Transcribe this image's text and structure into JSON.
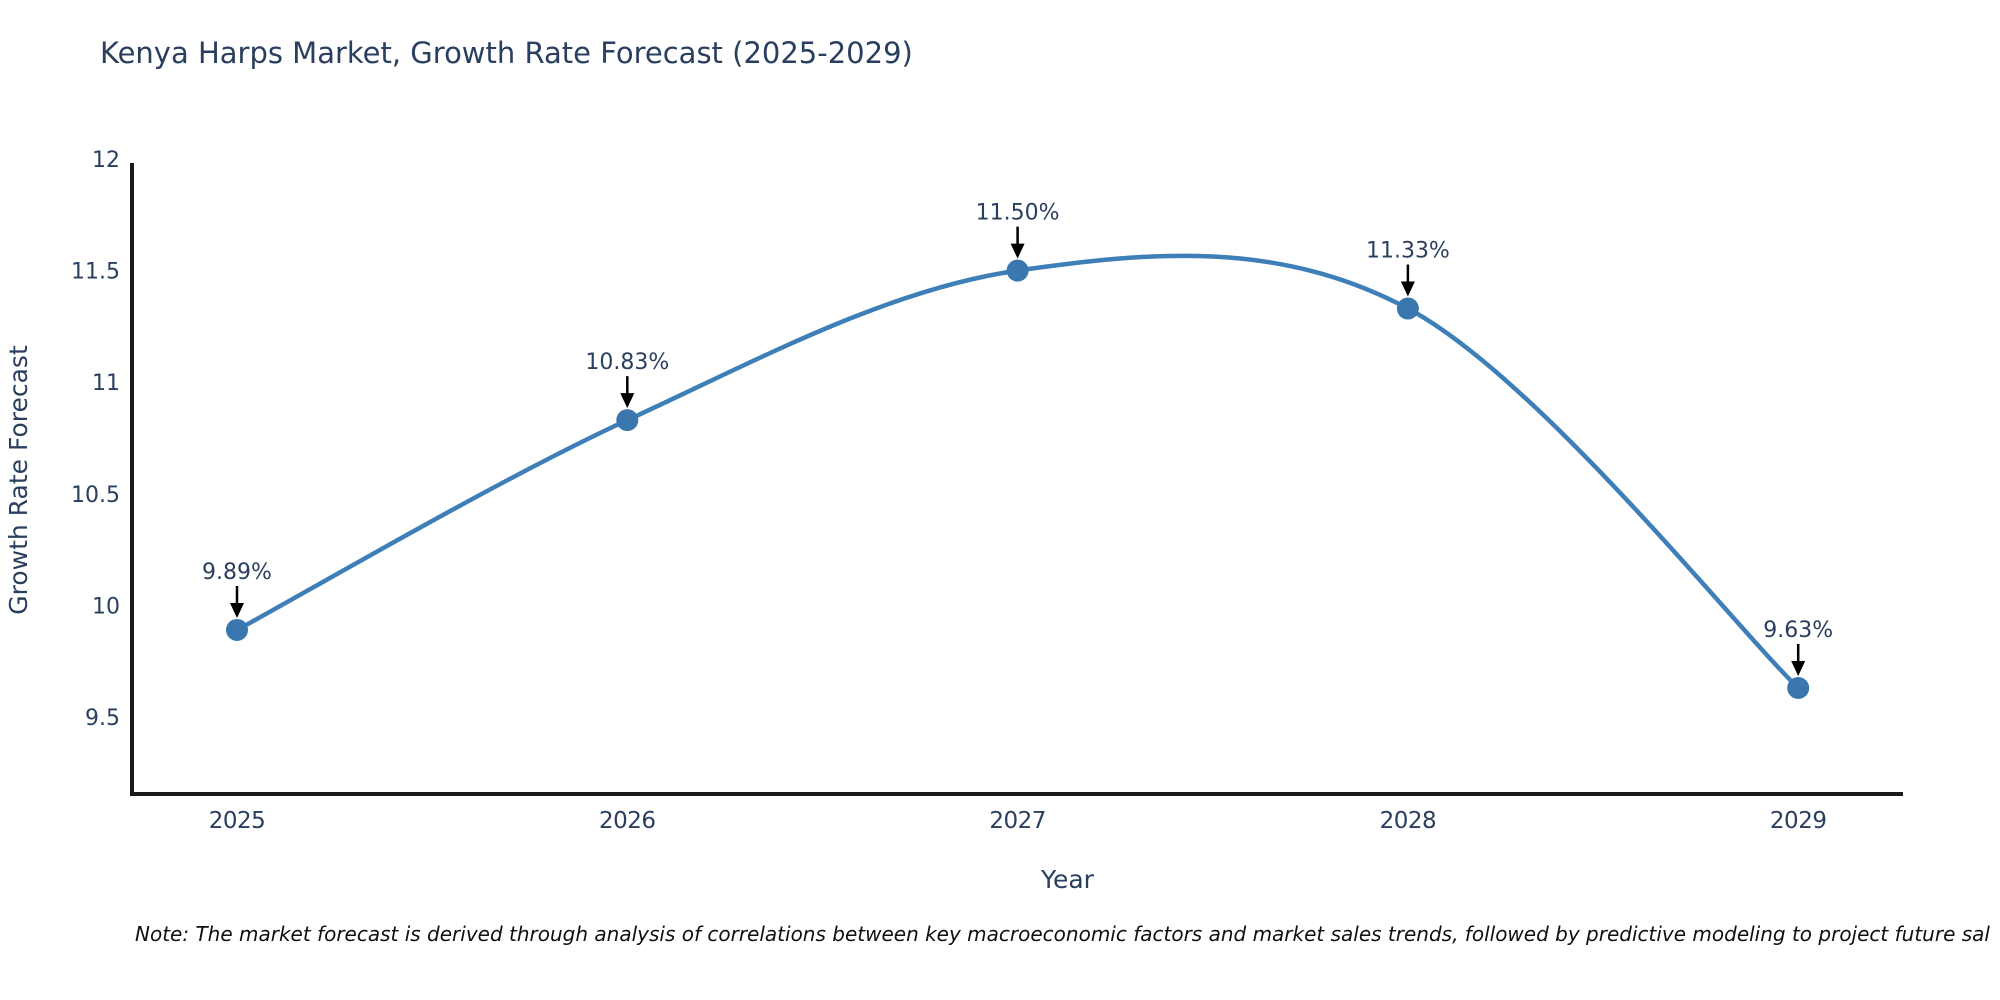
{
  "page": {
    "background": "#ffffff"
  },
  "header": {
    "title": "Kenya Harps Market, Growth Rate Forecast (2025-2029)"
  },
  "footer": {
    "note": "Note: The market forecast is derived through analysis of correlations between key macroeconomic factors and market sales trends, followed by predictive modeling to project future sal"
  },
  "chart_data": {
    "type": "line",
    "title": "Kenya Harps Market, Growth Rate Forecast (2025-2029)",
    "xlabel": "Year",
    "ylabel": "Growth Rate Forecast",
    "line_shape": "spline",
    "grid": false,
    "legend": "none",
    "x": [
      2025,
      2026,
      2027,
      2028,
      2029
    ],
    "xtick_labels": [
      "2025",
      "2026",
      "2027",
      "2028",
      "2029"
    ],
    "series": [
      {
        "name": "Growth Rate Forecast",
        "values": [
          9.89,
          10.83,
          11.5,
          11.33,
          9.63
        ],
        "point_labels": [
          "9.89%",
          "10.83%",
          "11.50%",
          "11.33%",
          "9.63%"
        ]
      }
    ],
    "yticks": [
      9.5,
      10,
      10.5,
      11,
      11.5,
      12
    ],
    "ytick_labels": [
      "9.5",
      "10",
      "10.5",
      "11",
      "11.5",
      "12"
    ],
    "ylim": [
      9.155,
      12
    ],
    "colors": {
      "line": "#3e7fb8",
      "marker": "#3a77ae",
      "axis": "#1a1a1a",
      "text": "#2a3f5f",
      "annotation_text": "#2a3f5f",
      "annotation_arrow": "#000000",
      "note_text": "#101010"
    }
  }
}
